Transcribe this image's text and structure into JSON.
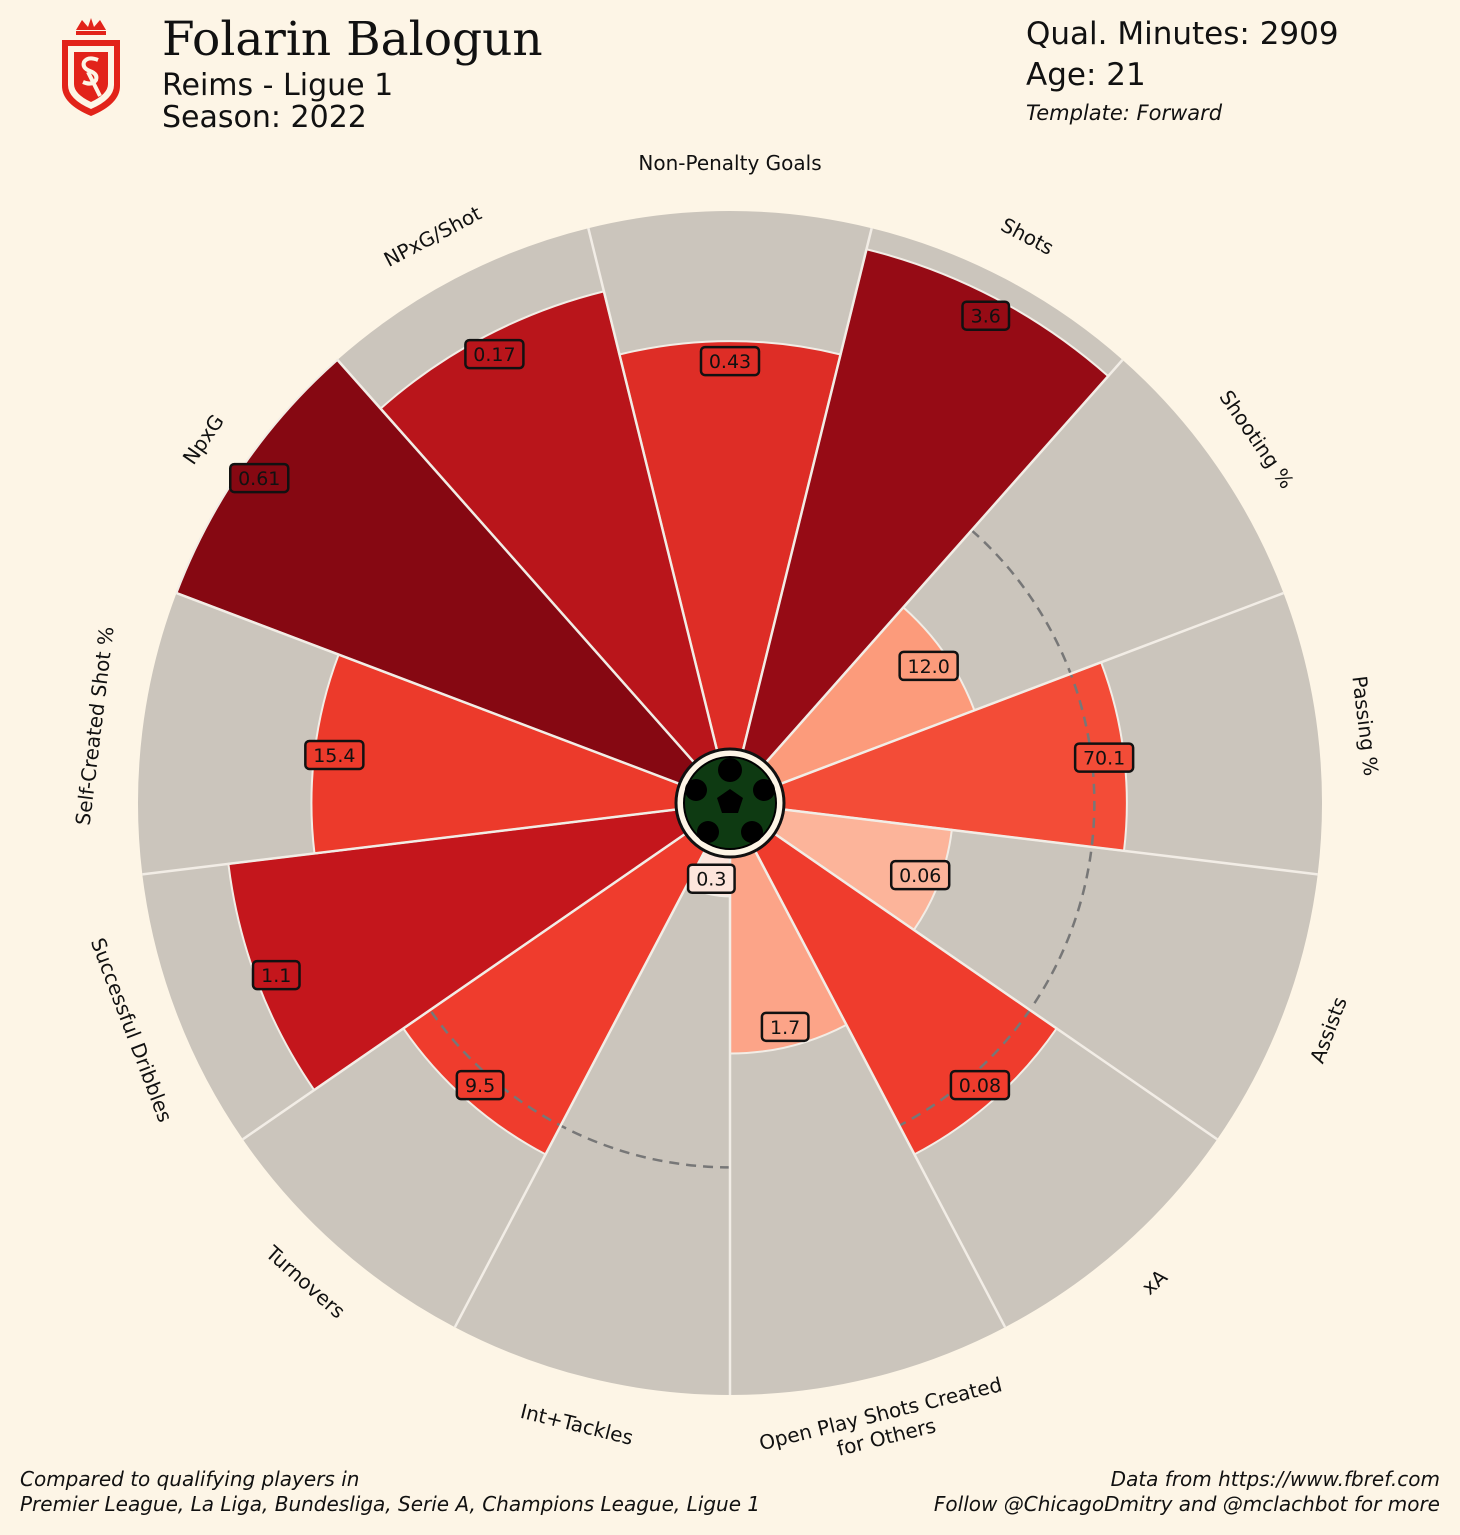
{
  "header": {
    "player_name": "Folarin Balogun",
    "club_league": "Reims - Ligue 1",
    "season": "Season: 2022",
    "minutes": "Qual. Minutes: 2909",
    "age": "Age: 21",
    "template": "Template: Forward"
  },
  "footer": {
    "compared_line1": "Compared to qualifying players in",
    "compared_line2": "Premier League, La Liga, Bundesliga, Serie A, Champions League, Ligue 1",
    "source_line1": "Data from https://www.fbref.com",
    "source_line2": "Follow @ChicagoDmitry and @mclachbot for more"
  },
  "colors": {
    "background": "#fdf5e6",
    "track": "#cbc5bc",
    "crest": "#e2231a"
  },
  "icons": {
    "crest": "stade-de-reims-crest-icon",
    "center": "soccer-ball-icon"
  },
  "chart_data": {
    "type": "radial-bar",
    "title": "Folarin Balogun",
    "metrics": [
      {
        "label": "Non-Penalty Goals",
        "value": "0.43",
        "percentile": 76,
        "color": "#de2d26"
      },
      {
        "label": "Shots",
        "value": "3.6",
        "percentile": 96,
        "color": "#960b15"
      },
      {
        "label": "Shooting %",
        "value": "12.0",
        "percentile": 39,
        "color": "#fc9b7b"
      },
      {
        "label": "Passing %",
        "value": "70.1",
        "percentile": 64,
        "color": "#f34c37"
      },
      {
        "label": "Assists",
        "value": "0.06",
        "percentile": 32,
        "color": "#fcb49a"
      },
      {
        "label": "xA",
        "value": "0.08",
        "percentile": 64,
        "color": "#ef3c2d"
      },
      {
        "label": "Open Play Shots Created\nfor Others",
        "value": "1.7",
        "percentile": 37,
        "color": "#fca488"
      },
      {
        "label": "Int+Tackles",
        "value": "0.3",
        "percentile": 8,
        "color": "#fde5dc"
      },
      {
        "label": "Turnovers",
        "value": "9.5",
        "percentile": 64,
        "color": "#ef3c2d"
      },
      {
        "label": "Successful Dribbles",
        "value": "1.1",
        "percentile": 84,
        "color": "#c4161c"
      },
      {
        "label": "Self-Created Shot %",
        "value": "15.4",
        "percentile": 68,
        "color": "#ec3a2b"
      },
      {
        "label": "NpxG",
        "value": "0.61",
        "percentile": 100,
        "color": "#860812"
      },
      {
        "label": "NPxG/Shot",
        "value": "0.17",
        "percentile": 88,
        "color": "#b9151b"
      }
    ],
    "group_rings": [
      {
        "from": 2,
        "to": 5,
        "percentile": 58
      },
      {
        "from": 7,
        "to": 8,
        "percentile": 58
      }
    ],
    "range": [
      0,
      100
    ]
  }
}
